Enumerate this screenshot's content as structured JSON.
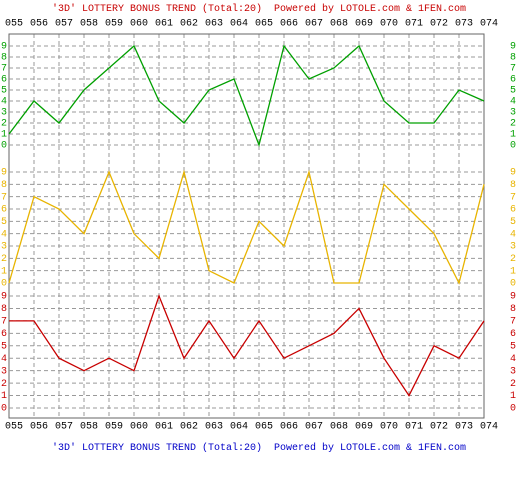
{
  "chart_data": {
    "type": "line",
    "title": "'3D' LOTTERY BONUS TREND (Total:20)",
    "subtitle": "Powered by LOTOLE.com & 1FEN.com",
    "categories": [
      "055",
      "056",
      "057",
      "058",
      "059",
      "060",
      "061",
      "062",
      "063",
      "064",
      "065",
      "066",
      "067",
      "068",
      "069",
      "070",
      "071",
      "072",
      "073",
      "074"
    ],
    "grid": true,
    "series": [
      {
        "color": "#00a000",
        "values": [
          1,
          4,
          2,
          5,
          7,
          9,
          4,
          2,
          5,
          6,
          0,
          9,
          6,
          7,
          9,
          4,
          2,
          2,
          5,
          4
        ],
        "ylim": [
          0,
          9
        ],
        "yticks": [
          0,
          1,
          2,
          3,
          4,
          5,
          6,
          7,
          8,
          9
        ]
      },
      {
        "color": "#e8b400",
        "values": [
          0,
          7,
          6,
          4,
          9,
          4,
          2,
          9,
          1,
          0,
          5,
          3,
          9,
          0,
          0,
          8,
          6,
          4,
          0,
          8
        ],
        "ylim": [
          0,
          9
        ],
        "yticks": [
          0,
          1,
          2,
          3,
          4,
          5,
          6,
          7,
          8,
          9
        ]
      },
      {
        "color": "#c80000",
        "values": [
          7,
          7,
          4,
          3,
          4,
          3,
          9,
          4,
          7,
          4,
          7,
          4,
          5,
          6,
          8,
          4,
          1,
          5,
          4,
          7
        ],
        "ylim": [
          0,
          9
        ],
        "yticks": [
          0,
          1,
          2,
          3,
          4,
          5,
          6,
          7,
          8,
          9
        ]
      }
    ]
  }
}
